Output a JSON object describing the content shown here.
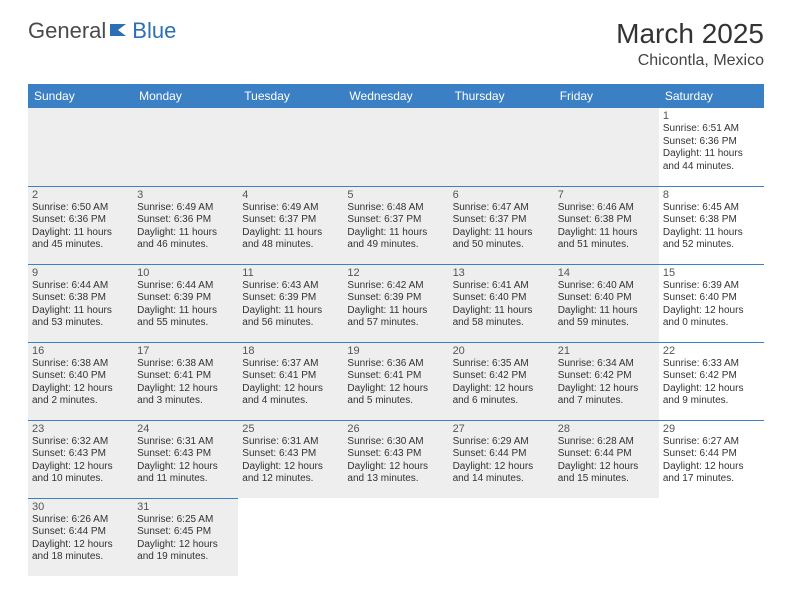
{
  "logo": {
    "part1": "General",
    "part2": "Blue"
  },
  "title": "March 2025",
  "location": "Chicontla, Mexico",
  "colors": {
    "header_bg": "#3b7fc4",
    "header_text": "#ffffff",
    "divider": "#3b7fc4",
    "shaded_bg": "#eeeeee",
    "logo_gray": "#4a4a4a",
    "logo_blue": "#2d6fb5"
  },
  "days_of_week": [
    "Sunday",
    "Monday",
    "Tuesday",
    "Wednesday",
    "Thursday",
    "Friday",
    "Saturday"
  ],
  "weeks": [
    [
      {
        "day": "",
        "sunrise": "",
        "sunset": "",
        "daylight": "",
        "shaded": true,
        "empty": true
      },
      {
        "day": "",
        "sunrise": "",
        "sunset": "",
        "daylight": "",
        "shaded": true,
        "empty": true
      },
      {
        "day": "",
        "sunrise": "",
        "sunset": "",
        "daylight": "",
        "shaded": true,
        "empty": true
      },
      {
        "day": "",
        "sunrise": "",
        "sunset": "",
        "daylight": "",
        "shaded": true,
        "empty": true
      },
      {
        "day": "",
        "sunrise": "",
        "sunset": "",
        "daylight": "",
        "shaded": true,
        "empty": true
      },
      {
        "day": "",
        "sunrise": "",
        "sunset": "",
        "daylight": "",
        "shaded": true,
        "empty": true
      },
      {
        "day": "1",
        "sunrise": "Sunrise: 6:51 AM",
        "sunset": "Sunset: 6:36 PM",
        "daylight": "Daylight: 11 hours and 44 minutes.",
        "shaded": false
      }
    ],
    [
      {
        "day": "2",
        "sunrise": "Sunrise: 6:50 AM",
        "sunset": "Sunset: 6:36 PM",
        "daylight": "Daylight: 11 hours and 45 minutes.",
        "shaded": true
      },
      {
        "day": "3",
        "sunrise": "Sunrise: 6:49 AM",
        "sunset": "Sunset: 6:36 PM",
        "daylight": "Daylight: 11 hours and 46 minutes.",
        "shaded": true
      },
      {
        "day": "4",
        "sunrise": "Sunrise: 6:49 AM",
        "sunset": "Sunset: 6:37 PM",
        "daylight": "Daylight: 11 hours and 48 minutes.",
        "shaded": true
      },
      {
        "day": "5",
        "sunrise": "Sunrise: 6:48 AM",
        "sunset": "Sunset: 6:37 PM",
        "daylight": "Daylight: 11 hours and 49 minutes.",
        "shaded": true
      },
      {
        "day": "6",
        "sunrise": "Sunrise: 6:47 AM",
        "sunset": "Sunset: 6:37 PM",
        "daylight": "Daylight: 11 hours and 50 minutes.",
        "shaded": true
      },
      {
        "day": "7",
        "sunrise": "Sunrise: 6:46 AM",
        "sunset": "Sunset: 6:38 PM",
        "daylight": "Daylight: 11 hours and 51 minutes.",
        "shaded": true
      },
      {
        "day": "8",
        "sunrise": "Sunrise: 6:45 AM",
        "sunset": "Sunset: 6:38 PM",
        "daylight": "Daylight: 11 hours and 52 minutes.",
        "shaded": false
      }
    ],
    [
      {
        "day": "9",
        "sunrise": "Sunrise: 6:44 AM",
        "sunset": "Sunset: 6:38 PM",
        "daylight": "Daylight: 11 hours and 53 minutes.",
        "shaded": true
      },
      {
        "day": "10",
        "sunrise": "Sunrise: 6:44 AM",
        "sunset": "Sunset: 6:39 PM",
        "daylight": "Daylight: 11 hours and 55 minutes.",
        "shaded": true
      },
      {
        "day": "11",
        "sunrise": "Sunrise: 6:43 AM",
        "sunset": "Sunset: 6:39 PM",
        "daylight": "Daylight: 11 hours and 56 minutes.",
        "shaded": true
      },
      {
        "day": "12",
        "sunrise": "Sunrise: 6:42 AM",
        "sunset": "Sunset: 6:39 PM",
        "daylight": "Daylight: 11 hours and 57 minutes.",
        "shaded": true
      },
      {
        "day": "13",
        "sunrise": "Sunrise: 6:41 AM",
        "sunset": "Sunset: 6:40 PM",
        "daylight": "Daylight: 11 hours and 58 minutes.",
        "shaded": true
      },
      {
        "day": "14",
        "sunrise": "Sunrise: 6:40 AM",
        "sunset": "Sunset: 6:40 PM",
        "daylight": "Daylight: 11 hours and 59 minutes.",
        "shaded": true
      },
      {
        "day": "15",
        "sunrise": "Sunrise: 6:39 AM",
        "sunset": "Sunset: 6:40 PM",
        "daylight": "Daylight: 12 hours and 0 minutes.",
        "shaded": false
      }
    ],
    [
      {
        "day": "16",
        "sunrise": "Sunrise: 6:38 AM",
        "sunset": "Sunset: 6:40 PM",
        "daylight": "Daylight: 12 hours and 2 minutes.",
        "shaded": true
      },
      {
        "day": "17",
        "sunrise": "Sunrise: 6:38 AM",
        "sunset": "Sunset: 6:41 PM",
        "daylight": "Daylight: 12 hours and 3 minutes.",
        "shaded": true
      },
      {
        "day": "18",
        "sunrise": "Sunrise: 6:37 AM",
        "sunset": "Sunset: 6:41 PM",
        "daylight": "Daylight: 12 hours and 4 minutes.",
        "shaded": true
      },
      {
        "day": "19",
        "sunrise": "Sunrise: 6:36 AM",
        "sunset": "Sunset: 6:41 PM",
        "daylight": "Daylight: 12 hours and 5 minutes.",
        "shaded": true
      },
      {
        "day": "20",
        "sunrise": "Sunrise: 6:35 AM",
        "sunset": "Sunset: 6:42 PM",
        "daylight": "Daylight: 12 hours and 6 minutes.",
        "shaded": true
      },
      {
        "day": "21",
        "sunrise": "Sunrise: 6:34 AM",
        "sunset": "Sunset: 6:42 PM",
        "daylight": "Daylight: 12 hours and 7 minutes.",
        "shaded": true
      },
      {
        "day": "22",
        "sunrise": "Sunrise: 6:33 AM",
        "sunset": "Sunset: 6:42 PM",
        "daylight": "Daylight: 12 hours and 9 minutes.",
        "shaded": false
      }
    ],
    [
      {
        "day": "23",
        "sunrise": "Sunrise: 6:32 AM",
        "sunset": "Sunset: 6:43 PM",
        "daylight": "Daylight: 12 hours and 10 minutes.",
        "shaded": true
      },
      {
        "day": "24",
        "sunrise": "Sunrise: 6:31 AM",
        "sunset": "Sunset: 6:43 PM",
        "daylight": "Daylight: 12 hours and 11 minutes.",
        "shaded": true
      },
      {
        "day": "25",
        "sunrise": "Sunrise: 6:31 AM",
        "sunset": "Sunset: 6:43 PM",
        "daylight": "Daylight: 12 hours and 12 minutes.",
        "shaded": true
      },
      {
        "day": "26",
        "sunrise": "Sunrise: 6:30 AM",
        "sunset": "Sunset: 6:43 PM",
        "daylight": "Daylight: 12 hours and 13 minutes.",
        "shaded": true
      },
      {
        "day": "27",
        "sunrise": "Sunrise: 6:29 AM",
        "sunset": "Sunset: 6:44 PM",
        "daylight": "Daylight: 12 hours and 14 minutes.",
        "shaded": true
      },
      {
        "day": "28",
        "sunrise": "Sunrise: 6:28 AM",
        "sunset": "Sunset: 6:44 PM",
        "daylight": "Daylight: 12 hours and 15 minutes.",
        "shaded": true
      },
      {
        "day": "29",
        "sunrise": "Sunrise: 6:27 AM",
        "sunset": "Sunset: 6:44 PM",
        "daylight": "Daylight: 12 hours and 17 minutes.",
        "shaded": false
      }
    ],
    [
      {
        "day": "30",
        "sunrise": "Sunrise: 6:26 AM",
        "sunset": "Sunset: 6:44 PM",
        "daylight": "Daylight: 12 hours and 18 minutes.",
        "shaded": true
      },
      {
        "day": "31",
        "sunrise": "Sunrise: 6:25 AM",
        "sunset": "Sunset: 6:45 PM",
        "daylight": "Daylight: 12 hours and 19 minutes.",
        "shaded": true
      },
      {
        "day": "",
        "sunrise": "",
        "sunset": "",
        "daylight": "",
        "shaded": false,
        "empty": true
      },
      {
        "day": "",
        "sunrise": "",
        "sunset": "",
        "daylight": "",
        "shaded": false,
        "empty": true
      },
      {
        "day": "",
        "sunrise": "",
        "sunset": "",
        "daylight": "",
        "shaded": false,
        "empty": true
      },
      {
        "day": "",
        "sunrise": "",
        "sunset": "",
        "daylight": "",
        "shaded": false,
        "empty": true
      },
      {
        "day": "",
        "sunrise": "",
        "sunset": "",
        "daylight": "",
        "shaded": false,
        "empty": true
      }
    ]
  ]
}
